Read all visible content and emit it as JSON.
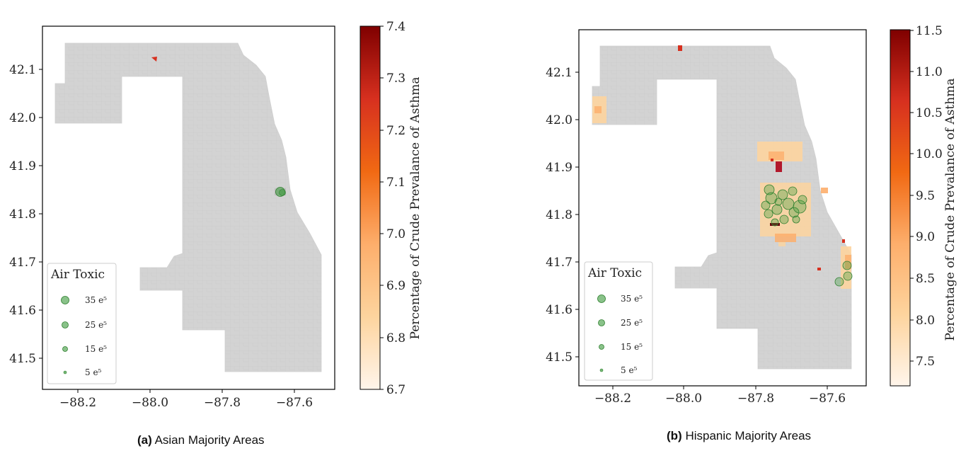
{
  "panels": [
    {
      "caption_tag": "(a)",
      "caption_text": " Asian Majority Areas",
      "x_ticks": [
        "−88.2",
        "−88.0",
        "−87.8",
        "−87.6"
      ],
      "y_ticks": [
        "42.1",
        "42.0",
        "41.9",
        "41.8",
        "41.7",
        "41.6",
        "41.5"
      ],
      "legend_title": "Air Toxic",
      "legend_items": [
        "35 e⁵",
        "25 e⁵",
        "15 e⁵",
        "5 e⁵"
      ],
      "colorbar_label": "Percentage of Crude Prevalance of Asthma",
      "colorbar_ticks": [
        "7.4",
        "7.3",
        "7.2",
        "7.1",
        "7.0",
        "6.9",
        "6.8",
        "6.7"
      ],
      "colorbar_range": [
        6.7,
        7.4
      ]
    },
    {
      "caption_tag": "(b)",
      "caption_text": " Hispanic Majority Areas",
      "x_ticks": [
        "−88.2",
        "−88.0",
        "−87.8",
        "−87.6"
      ],
      "y_ticks": [
        "42.1",
        "42.0",
        "41.9",
        "41.8",
        "41.7",
        "41.6",
        "41.5"
      ],
      "legend_title": "Air Toxic",
      "legend_items": [
        "35 e⁵",
        "25 e⁵",
        "15 e⁵",
        "5 e⁵"
      ],
      "colorbar_label": "Percentage of Crude Prevalance of Asthma",
      "colorbar_ticks": [
        "11.5",
        "11.0",
        "10.5",
        "10.0",
        "9.5",
        "9.0",
        "8.5",
        "8.0",
        "7.5"
      ],
      "colorbar_range": [
        7.2,
        11.5
      ]
    }
  ],
  "colors": {
    "county_fill": "#d3d3d3",
    "tract_line": "#c4c4c4",
    "toxic_marker": "#3a9a3a",
    "colormap": [
      "#fff5eb",
      "#fdd49e",
      "#fdae6b",
      "#f16913",
      "#d7301f",
      "#7f0000"
    ]
  }
}
